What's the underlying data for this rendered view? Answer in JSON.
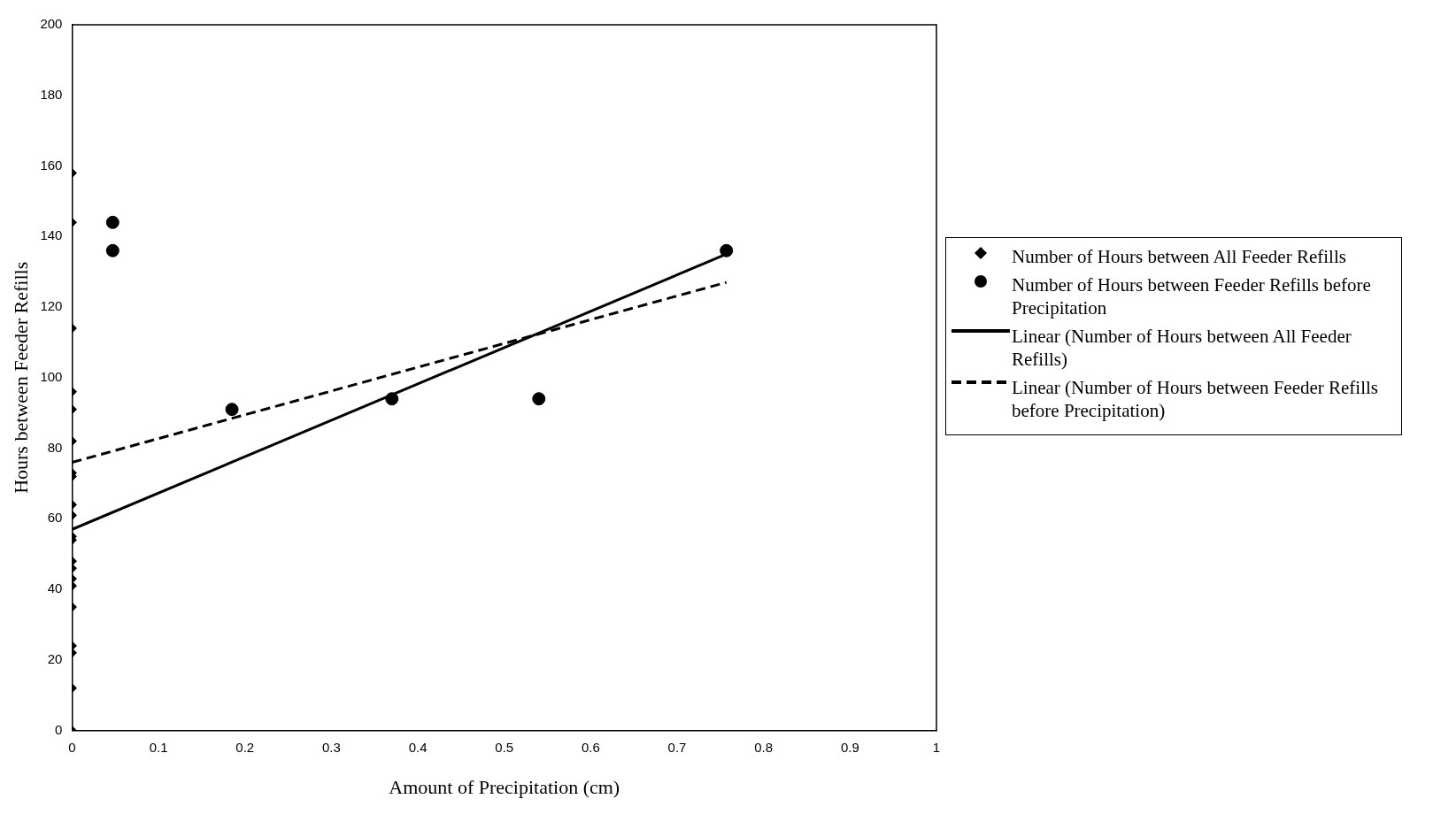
{
  "chart_data": {
    "type": "scatter",
    "xlabel": "Amount of Precipitation (cm)",
    "ylabel": "Hours between Feeder Refills",
    "xlim": [
      0,
      1
    ],
    "xticks": [
      0,
      0.1,
      0.2,
      0.3,
      0.4,
      0.5,
      0.6,
      0.7,
      0.8,
      0.9,
      1
    ],
    "ylim": [
      0,
      200
    ],
    "yticks": [
      0,
      20,
      40,
      60,
      80,
      100,
      120,
      140,
      160,
      180,
      200
    ],
    "grid": false,
    "legend": "right",
    "series": [
      {
        "name": "Number of Hours between All Feeder Refills",
        "marker": "diamond",
        "color": "#000000",
        "x": [
          0,
          0,
          0,
          0,
          0,
          0,
          0,
          0,
          0,
          0,
          0,
          0,
          0,
          0,
          0,
          0,
          0,
          0,
          0,
          0,
          0
        ],
        "values": [
          158,
          144,
          114,
          96,
          91,
          82,
          73,
          72,
          64,
          61,
          55,
          54,
          48,
          46,
          43,
          41,
          35,
          24,
          22,
          12,
          0
        ]
      },
      {
        "name": "Number of Hours between Feeder Refills before Precipitation",
        "marker": "circle",
        "color": "#000000",
        "x": [
          0.047,
          0.047,
          0.185,
          0.37,
          0.54,
          0.757
        ],
        "values": [
          144,
          136,
          91,
          94,
          94,
          136
        ]
      },
      {
        "name": "Linear (Number of Hours between All Feeder Refills)",
        "type": "line",
        "marker": "none",
        "line_style": "solid",
        "color": "#000000",
        "x": [
          0,
          0.757
        ],
        "values": [
          57,
          135
        ]
      },
      {
        "name": "Linear (Number of Hours between Feeder Refills before Precipitation)",
        "type": "line",
        "marker": "none",
        "line_style": "dashed",
        "color": "#000000",
        "x": [
          0,
          0.757
        ],
        "values": [
          76,
          127
        ]
      }
    ]
  }
}
